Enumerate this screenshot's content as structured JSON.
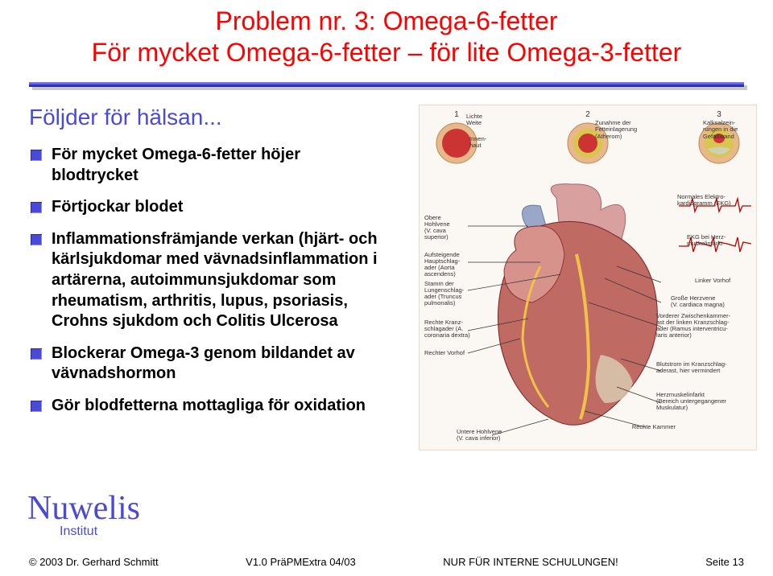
{
  "title_line1": "Problem nr. 3: Omega-6-fetter",
  "title_line2": "För mycket Omega-6-fetter – för lite Omega-3-fetter",
  "subtitle": "Följder för hälsan...",
  "bullets": [
    "För mycket Omega-6-fetter höjer blodtrycket",
    "Förtjockar blodet",
    "Inflammationsfrämjande verkan (hjärt- och kärlsjukdomar med vävnadsinflammation i artärerna, autoimmunsjukdomar som rheumatism, arthritis, lupus, psoriasis, Crohns sjukdom och Colitis Ulcerosa",
    "Blockerar Omega-3 genom bildandet av vävnadshormon",
    "Gör blodfetterna mottagliga för oxidation"
  ],
  "logo": {
    "name": "Nuwelis",
    "sub": "Institut"
  },
  "footer": {
    "left": "© 2003 Dr. Gerhard Schmitt",
    "mid1": "V1.0 PräPMExtra 04/03",
    "mid2": "NUR FÜR INTERNE SCHULUNGEN!",
    "right": "Seite 13"
  },
  "colors": {
    "accent_red": "#ff0000",
    "accent_blue": "#4a4ad6",
    "rule_shadow": "#c8c8c8",
    "heart_red": "#b23a3a",
    "heart_dark": "#7a2323",
    "vessel_blue": "#5b6fa8",
    "diagram_bg": "#fbf7f2",
    "artery_wall": "#e8b88a",
    "plaque": "#d9c64f",
    "lumen": "#c33"
  },
  "artery_stages": [
    {
      "num": "1",
      "lumen": 18,
      "plaque": 0
    },
    {
      "num": "2",
      "lumen": 14,
      "plaque": 6
    },
    {
      "num": "3",
      "lumen": 9,
      "plaque": 11
    }
  ],
  "diagram_labels": {
    "top_left": "Lichte\nWeite",
    "top_left2": "Innen-\nhaut",
    "top_mid": "Zunahme der\nFetteinlagerung\n(Atherom)",
    "top_right": "Kalksalzein-\nrungen in die\nGefäßwand",
    "l_obere": "Obere\nHohlvene\n(V. cava\nsuperior)",
    "l_aufst": "Aufsteigende\nHauptschlag-\nader (Aorta\nascendens)",
    "l_stamm": "Stamm der\nLungenschlag-\nader (Truncus\npulmonalis)",
    "l_rkranz": "Rechte Kranz-\nschlagader (A.\ncoronaria dextra)",
    "l_rvorhof": "Rechter Vorhof",
    "l_untere": "Untere Hohlvene\n(V. cava inferior)",
    "r_ekg1": "Normales Elektro-\nkardiogramm (EKG)",
    "r_ekg2": "EKG bei Herz-\nmuskelinfarkt",
    "r_lvorhof": "Linker Vorhof",
    "r_grherz": "Große Herzvene\n(V. cardiaca magna)",
    "r_vzk": "Vorderer Zwischenkammer-\nast der linken Kranzschlag-\nader (Ramus interventricu-\nlaris anterior)",
    "r_blut": "Blutstrom im Kranzschlag-\naderast, hier vermindert",
    "r_hminf": "Herzmuskelinfarkt\n(Bereich untergegangener\nMuskulatur)",
    "r_kammer": "Rechte Kammer"
  }
}
